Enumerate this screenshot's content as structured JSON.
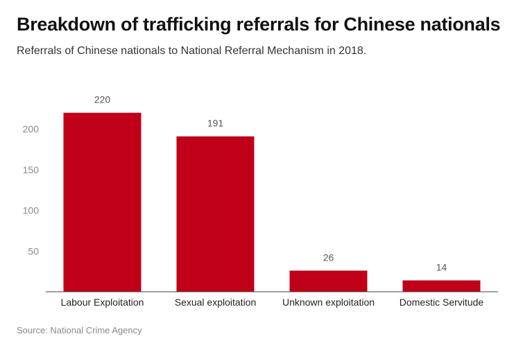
{
  "title": "Breakdown of trafficking referrals for Chinese nationals",
  "subtitle": "Referrals of Chinese nationals to National Referral Mechanism in 2018.",
  "source": "Source: National Crime Agency",
  "colors": {
    "bar": "#c00018",
    "axis": "#444444",
    "tick": "#8a8a8a"
  },
  "chart_data": {
    "type": "bar",
    "title": "Breakdown of trafficking referrals for Chinese nationals",
    "subtitle": "Referrals of Chinese nationals to National Referral Mechanism in 2018.",
    "categories": [
      "Labour Exploitation",
      "Sexual exploitation",
      "Unknown exploitation",
      "Domestic Servitude"
    ],
    "values": [
      220,
      191,
      26,
      14
    ],
    "data_labels": [
      "220",
      "191",
      "26",
      "14"
    ],
    "yticks": [
      50,
      100,
      150,
      200
    ],
    "ylim": [
      0,
      224
    ],
    "grid": false,
    "legend": "none"
  }
}
